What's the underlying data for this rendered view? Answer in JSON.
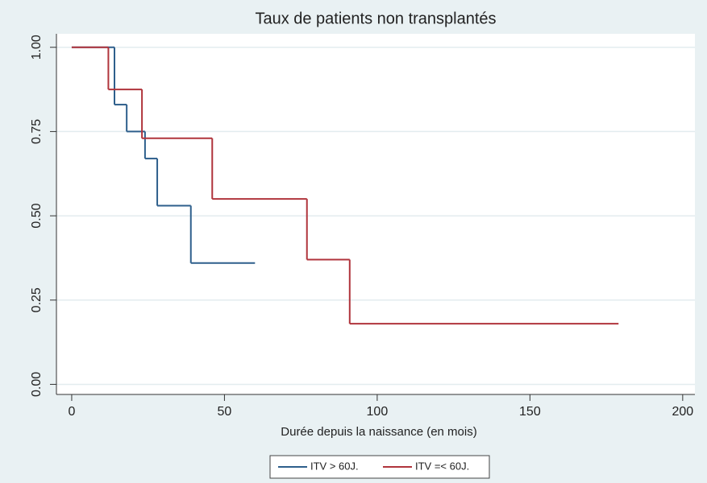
{
  "chart_data": {
    "type": "line",
    "step": "post",
    "title": "Taux de patients non transplantés",
    "xlabel": "Durée depuis la naissance (en mois)",
    "series": [
      {
        "name": "ITV > 60J.",
        "color": "#2e5f8c",
        "x": [
          0,
          14,
          18,
          24,
          28,
          39,
          60
        ],
        "values": [
          1,
          0.83,
          0.75,
          0.67,
          0.53,
          0.36,
          0.36
        ]
      },
      {
        "name": "ITV =< 60J.",
        "color": "#b0343c",
        "x": [
          0,
          12,
          23,
          46,
          77,
          91,
          179
        ],
        "values": [
          1,
          0.875,
          0.73,
          0.55,
          0.37,
          0.18,
          0.18
        ]
      }
    ],
    "xlim": [
      -5,
      204
    ],
    "xticks": [
      0,
      50,
      100,
      150,
      200
    ],
    "ylim": [
      -0.03,
      1.04
    ],
    "yticks": [
      {
        "value": 0,
        "label": "0.00"
      },
      {
        "value": 0.25,
        "label": "0.25"
      },
      {
        "value": 0.5,
        "label": "0.50"
      },
      {
        "value": 0.75,
        "label": "0.75"
      },
      {
        "value": 1,
        "label": "1.00"
      }
    ],
    "grid": true
  }
}
